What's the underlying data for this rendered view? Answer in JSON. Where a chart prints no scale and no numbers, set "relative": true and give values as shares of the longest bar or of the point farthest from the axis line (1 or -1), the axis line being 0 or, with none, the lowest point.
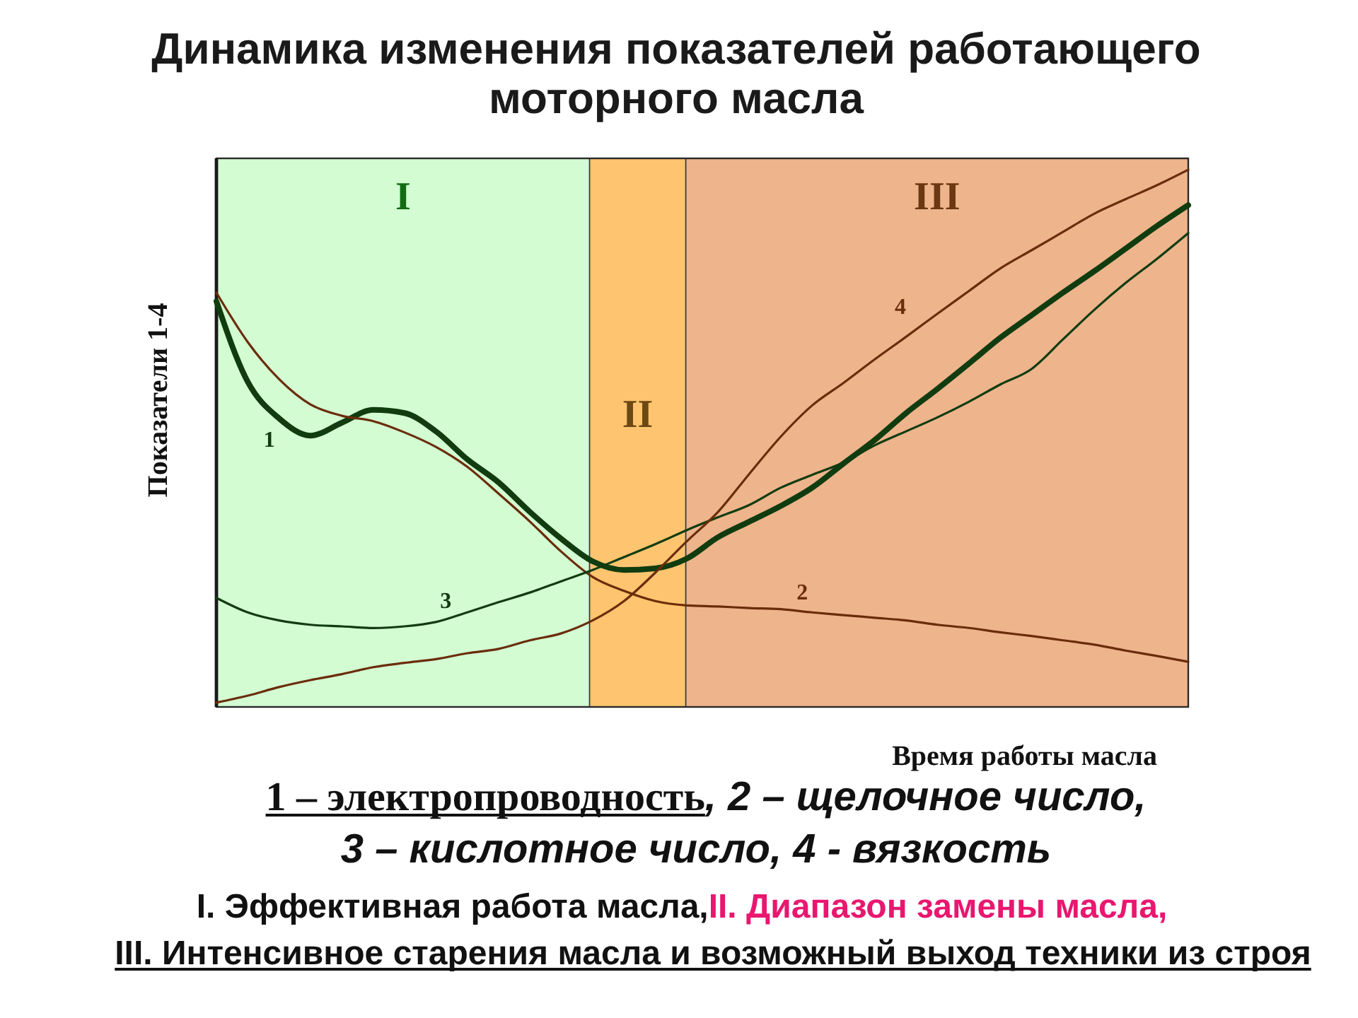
{
  "chart_data": {
    "type": "line",
    "title": "Динамика изменения показателей работающего моторного масла",
    "xlabel": "Время работы масла",
    "ylabel": "Показатели 1-4",
    "relative": true,
    "categories": [
      null,
      null,
      null,
      null,
      null,
      null,
      null,
      null,
      null,
      null,
      null,
      null,
      null,
      null,
      null,
      null,
      null,
      null,
      null,
      null,
      null,
      null,
      null,
      null,
      null,
      null,
      null,
      null,
      null,
      null,
      null,
      null
    ],
    "series": [
      {
        "name": "1",
        "color": "#103c10",
        "values": [
          0.755,
          0.605,
          0.537,
          0.505,
          0.529,
          0.553,
          0.547,
          0.513,
          0.461,
          0.418,
          0.363,
          0.313,
          0.271,
          0.255,
          0.258,
          0.276,
          0.316,
          0.345,
          0.374,
          0.408,
          0.453,
          0.497,
          0.547,
          0.592,
          0.639,
          0.687,
          0.729,
          0.771,
          0.811,
          0.853,
          0.895,
          0.934
        ]
      },
      {
        "name": "2",
        "color": "#6a2c0a",
        "values": [
          0.771,
          0.679,
          0.61,
          0.563,
          0.542,
          0.532,
          0.511,
          0.484,
          0.447,
          0.397,
          0.345,
          0.289,
          0.242,
          0.216,
          0.197,
          0.189,
          0.187,
          0.184,
          0.182,
          0.176,
          0.171,
          0.166,
          0.161,
          0.153,
          0.147,
          0.139,
          0.132,
          0.124,
          0.116,
          0.105,
          0.095,
          0.084
        ]
      },
      {
        "name": "3",
        "color": "#103c10",
        "values": [
          0.203,
          0.176,
          0.161,
          0.153,
          0.15,
          0.147,
          0.15,
          0.158,
          0.176,
          0.195,
          0.213,
          0.234,
          0.255,
          0.279,
          0.303,
          0.329,
          0.353,
          0.376,
          0.408,
          0.432,
          0.455,
          0.487,
          0.513,
          0.539,
          0.568,
          0.6,
          0.629,
          0.684,
          0.739,
          0.789,
          0.834,
          0.882
        ]
      },
      {
        "name": "4",
        "color": "#6a2c0a",
        "values": [
          0.008,
          0.021,
          0.037,
          0.05,
          0.061,
          0.074,
          0.082,
          0.089,
          0.1,
          0.108,
          0.124,
          0.137,
          0.161,
          0.197,
          0.25,
          0.308,
          0.363,
          0.434,
          0.503,
          0.561,
          0.603,
          0.647,
          0.689,
          0.732,
          0.774,
          0.816,
          0.85,
          0.884,
          0.918,
          0.945,
          0.971,
          1
        ]
      }
    ],
    "annotations": [
      "I",
      "II",
      "III",
      "1 – электропроводность",
      ", 2 – щелочное число,",
      "3 – кислотное число, 4 - вязкость",
      "I. Эффективная работа масла,",
      "II. Диапазон замены масла,",
      "III. Интенсивное старения масла и возможный выход техники из строя"
    ]
  }
}
